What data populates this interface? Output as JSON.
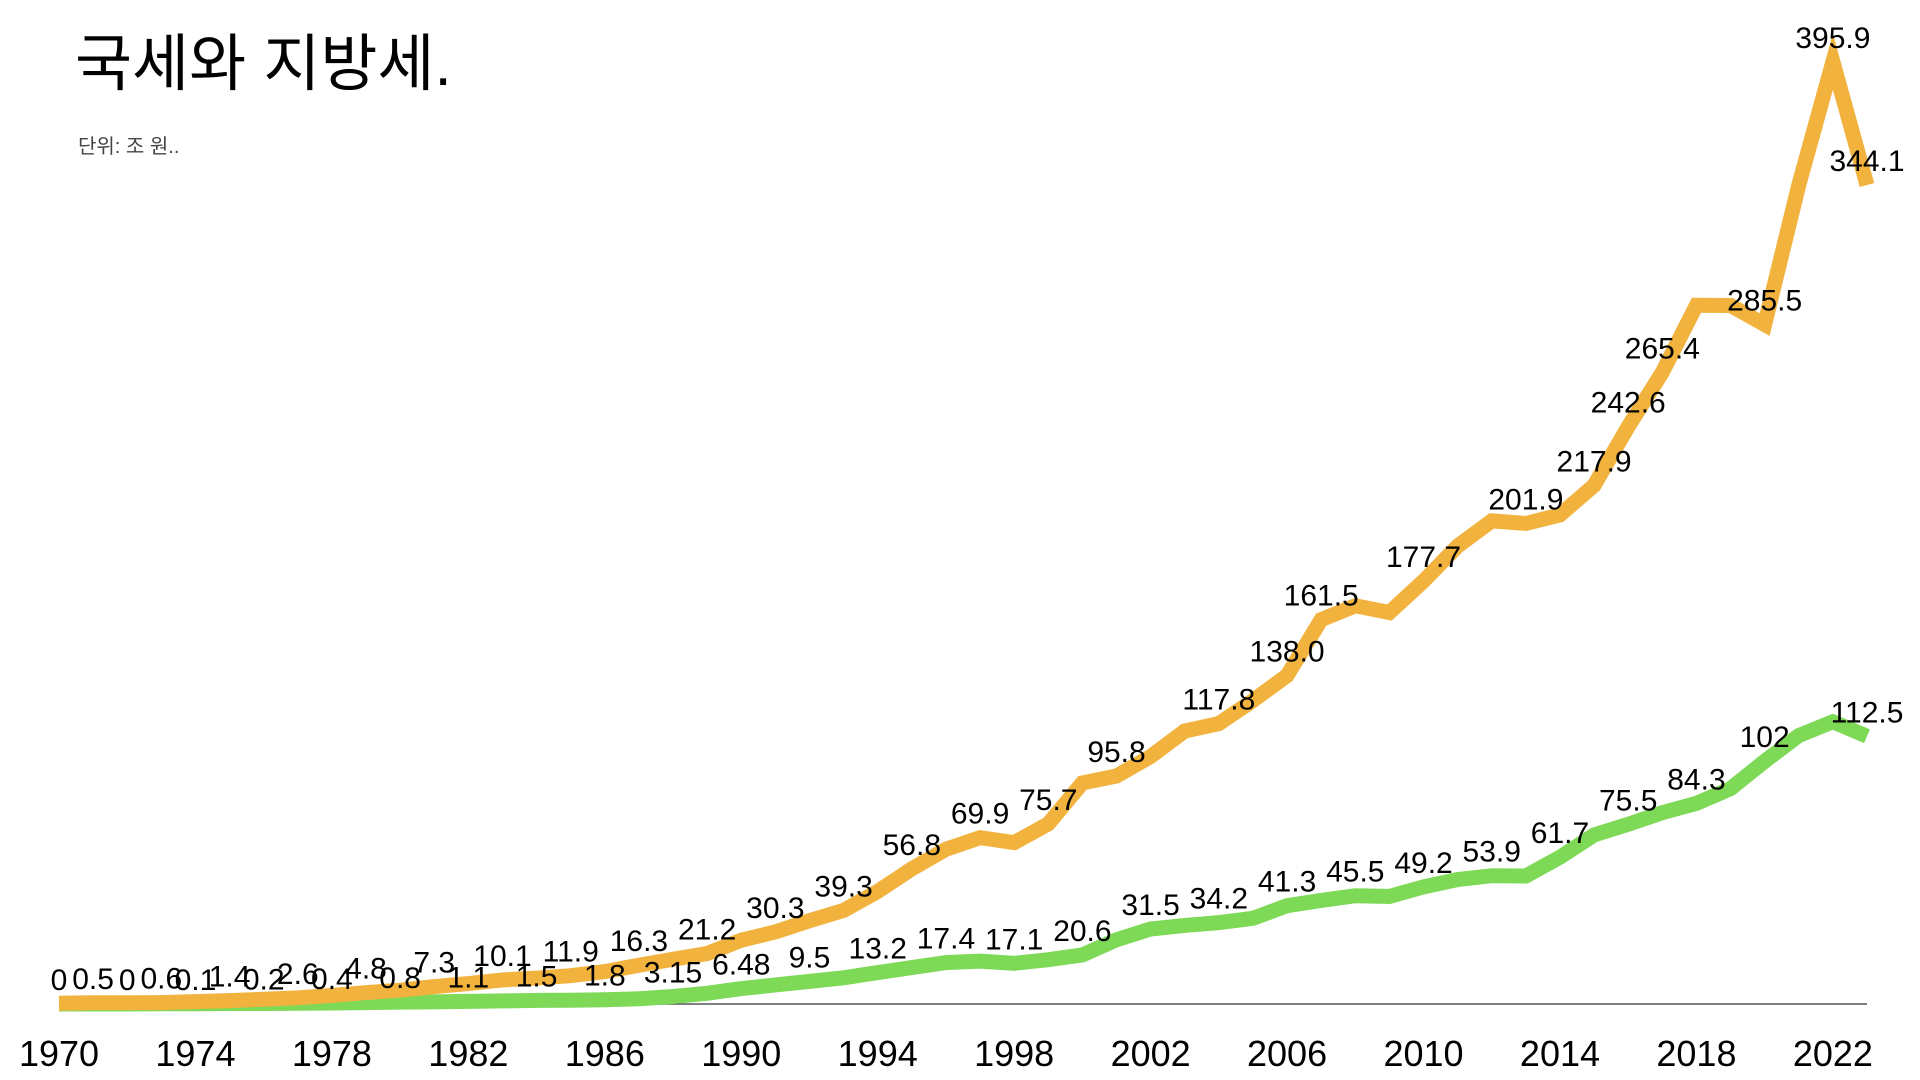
{
  "chart_data": {
    "type": "line",
    "title": "국세와 지방세.",
    "subtitle": "단위: 조 원..",
    "x": [
      1970,
      1971,
      1972,
      1973,
      1974,
      1975,
      1976,
      1977,
      1978,
      1979,
      1980,
      1981,
      1982,
      1983,
      1984,
      1985,
      1986,
      1987,
      1988,
      1989,
      1990,
      1991,
      1992,
      1993,
      1994,
      1995,
      1996,
      1997,
      1998,
      1999,
      2000,
      2001,
      2002,
      2003,
      2004,
      2005,
      2006,
      2007,
      2008,
      2009,
      2010,
      2011,
      2012,
      2013,
      2014,
      2015,
      2016,
      2017,
      2018,
      2019,
      2020,
      2021,
      2022,
      2023
    ],
    "xlim": [
      1970,
      2023
    ],
    "xticks": [
      1970,
      1974,
      1978,
      1982,
      1986,
      1990,
      1994,
      1998,
      2002,
      2006,
      2010,
      2014,
      2018,
      2022
    ],
    "ylim": [
      0,
      400
    ],
    "series": [
      {
        "color": "#7ed957",
        "values": [
          0,
          0,
          0,
          0.1,
          0.1,
          0.2,
          0.2,
          0.3,
          0.4,
          0.6,
          0.8,
          0.9,
          1.1,
          1.3,
          1.5,
          1.6,
          1.8,
          2.2,
          3.15,
          4.5,
          6.48,
          8.0,
          9.5,
          11.0,
          13.2,
          15.3,
          17.4,
          18.0,
          17.1,
          18.6,
          20.6,
          27.0,
          31.5,
          33.0,
          34.2,
          36.0,
          41.3,
          43.5,
          45.5,
          45.2,
          49.2,
          52.3,
          53.9,
          53.8,
          61.7,
          71.0,
          75.5,
          80.4,
          84.3,
          90.5,
          102,
          112.8,
          118.6,
          112.5
        ],
        "value_labels": [
          "0",
          null,
          "0",
          null,
          "0.1",
          null,
          "0.2",
          null,
          "0.4",
          null,
          "0.8",
          null,
          "1.1",
          null,
          "1.5",
          null,
          "1.8",
          null,
          "3.15",
          null,
          "6.48",
          null,
          "9.5",
          null,
          "13.2",
          null,
          "17.4",
          null,
          "17.1",
          null,
          "20.6",
          null,
          "31.5",
          null,
          "34.2",
          null,
          "41.3",
          null,
          "45.5",
          null,
          "49.2",
          null,
          "53.9",
          null,
          "61.7",
          null,
          "75.5",
          null,
          "84.3",
          null,
          "102",
          null,
          null,
          "112.5"
        ]
      },
      {
        "color": "#f2b23e",
        "values": [
          0.3,
          0.5,
          0.5,
          0.6,
          1.0,
          1.4,
          2.0,
          2.6,
          3.6,
          4.8,
          5.8,
          7.3,
          8.6,
          10.1,
          10.9,
          11.9,
          13.6,
          16.3,
          18.8,
          21.2,
          26.8,
          30.3,
          35.0,
          39.3,
          47.3,
          56.8,
          65.0,
          69.9,
          67.8,
          75.7,
          92.9,
          95.8,
          104.0,
          114.7,
          117.8,
          127.5,
          138.0,
          161.5,
          167.3,
          164.5,
          177.7,
          192.4,
          203.0,
          201.9,
          205.5,
          217.9,
          242.6,
          265.4,
          293.6,
          293.5,
          285.5,
          344.1,
          395.9,
          344.1
        ],
        "value_labels": [
          null,
          "0.5",
          null,
          "0.6",
          null,
          "1.4",
          null,
          "2.6",
          null,
          "4.8",
          null,
          "7.3",
          null,
          "10.1",
          null,
          "11.9",
          null,
          "16.3",
          null,
          "21.2",
          null,
          "30.3",
          null,
          "39.3",
          null,
          "56.8",
          null,
          "69.9",
          null,
          "75.7",
          null,
          "95.8",
          null,
          null,
          "117.8",
          null,
          "138.0",
          "161.5",
          null,
          null,
          "177.7",
          null,
          null,
          "201.9",
          null,
          "217.9",
          "242.6",
          "265.4",
          null,
          null,
          "285.5",
          null,
          "395.9",
          "344.1"
        ]
      }
    ]
  }
}
